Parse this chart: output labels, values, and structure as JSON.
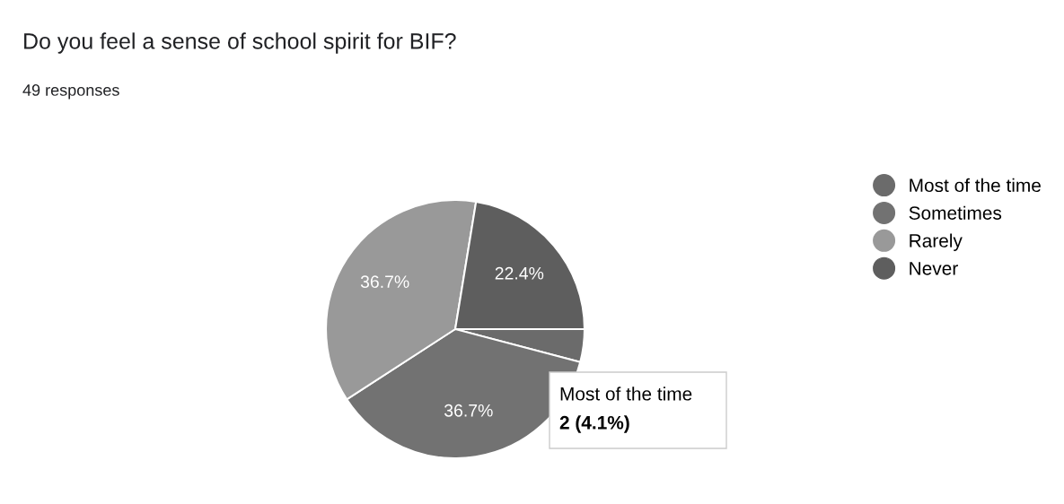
{
  "chart_data": {
    "type": "pie",
    "title": "Do you feel a sense of school spirit for BIF?",
    "subtitle": "49 responses",
    "categories": [
      "Most of the time",
      "Sometimes",
      "Rarely",
      "Never"
    ],
    "values": [
      4.1,
      36.7,
      36.7,
      22.4
    ],
    "colors": [
      "#6b6b6b",
      "#727272",
      "#999999",
      "#5e5e5e"
    ],
    "value_labels": [
      null,
      "36.7%",
      "36.7%",
      "22.4%"
    ],
    "legend": "right",
    "annotations": [
      "Most of the time",
      "2 (4.1%)"
    ]
  }
}
